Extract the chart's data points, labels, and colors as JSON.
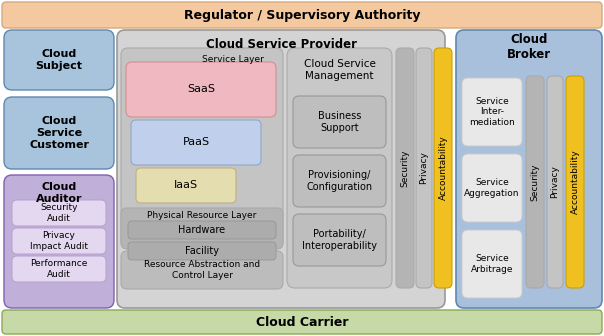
{
  "fig_width": 6.04,
  "fig_height": 3.36,
  "dpi": 100,
  "bg_color": "#ffffff",
  "regulator_color": "#f5c9a0",
  "regulator_text": "Regulator / Supervisory Authority",
  "carrier_color": "#c8d9a8",
  "carrier_text": "Cloud Carrier",
  "cloud_subject_color": "#a8c4dc",
  "cloud_subject_text": "Cloud\nSubject",
  "cloud_customer_color": "#a8c4dc",
  "cloud_customer_text": "Cloud\nService\nCustomer",
  "cloud_auditor_color": "#c0afd8",
  "cloud_auditor_text": "Cloud\nAuditor",
  "audit_items": [
    "Security\nAudit",
    "Privacy\nImpact Audit",
    "Performance\nAudit"
  ],
  "audit_item_color": "#e4d8f0",
  "audit_item_ec": "#b8a0d0",
  "csp_color": "#d4d4d4",
  "csp_text": "Cloud Service Provider",
  "service_layer_color": "#c4c4c4",
  "service_layer_text": "Service Layer",
  "saas_color": "#f0b8c0",
  "saas_text": "SaaS",
  "paas_color": "#c0d0ec",
  "paas_text": "PaaS",
  "iaas_color": "#e4ddb0",
  "iaas_text": "IaaS",
  "resource_layer_color": "#bcbcbc",
  "resource_layer_text": "Resource Abstraction and\nControl Layer",
  "physical_layer_color": "#b4b4b4",
  "physical_layer_text": "Physical Resource Layer",
  "hardware_color": "#acacac",
  "hardware_text": "Hardware",
  "facility_color": "#acacac",
  "facility_text": "Facility",
  "csm_bg_color": "#c8c8c8",
  "csm_text": "Cloud Service\nManagement",
  "business_color": "#bebebe",
  "business_text": "Business\nSupport",
  "provisioning_color": "#bebebe",
  "provisioning_text": "Provisioning/\nConfiguration",
  "portability_color": "#bebebe",
  "portability_text": "Portability/\nInteroperability",
  "security_color": "#b4b4b4",
  "security_text": "Security",
  "privacy_color": "#c4c4c4",
  "privacy_text": "Privacy",
  "accountability_color": "#f0c020",
  "accountability_text": "Accountability",
  "broker_color": "#a8c0dc",
  "broker_text": "Cloud\nBroker",
  "broker_items": [
    "Service\nInter-\nmediation",
    "Service\nAggregation",
    "Service\nArbitrage"
  ],
  "broker_item_color": "#e8e8e8",
  "broker_item_ec": "#cccccc",
  "broker_security_color": "#b4b4b4",
  "broker_security_text": "Security",
  "broker_privacy_color": "#c4c4c4",
  "broker_privacy_text": "Privacy",
  "broker_accountability_color": "#f0c020",
  "broker_accountability_text": "Accountability"
}
